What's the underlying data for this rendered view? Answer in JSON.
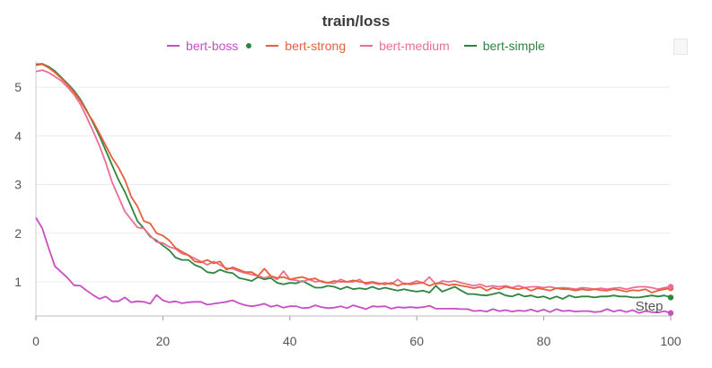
{
  "chart_data": {
    "type": "line",
    "title": "train/loss",
    "xlabel": "Step",
    "ylabel": "",
    "xlim": [
      0,
      100
    ],
    "ylim": [
      0.3,
      5.5
    ],
    "xticks": [
      0,
      20,
      40,
      60,
      80,
      100
    ],
    "yticks": [
      1,
      2,
      3,
      4,
      5
    ],
    "grid": true,
    "legend_position": "top-center",
    "series": [
      {
        "name": "bert-boss",
        "color": "#c64fc4",
        "highlighted": true,
        "x": [
          0,
          1,
          2,
          3,
          4,
          5,
          6,
          7,
          8,
          9,
          10,
          11,
          12,
          13,
          14,
          15,
          16,
          17,
          18,
          19,
          20,
          21,
          22,
          23,
          24,
          25,
          26,
          27,
          28,
          29,
          30,
          31,
          32,
          33,
          34,
          35,
          36,
          37,
          38,
          39,
          40,
          41,
          42,
          43,
          44,
          45,
          46,
          47,
          48,
          49,
          50,
          51,
          52,
          53,
          54,
          55,
          56,
          57,
          58,
          59,
          60,
          61,
          62,
          63,
          64,
          65,
          66,
          67,
          68,
          69,
          70,
          71,
          72,
          73,
          74,
          75,
          76,
          77,
          78,
          79,
          80,
          81,
          82,
          83,
          84,
          85,
          86,
          87,
          88,
          89,
          90,
          91,
          92,
          93,
          94,
          95,
          96,
          97,
          98,
          99,
          100
        ],
        "y": [
          2.32,
          2.1,
          1.7,
          1.32,
          1.2,
          1.08,
          0.93,
          0.92,
          0.82,
          0.73,
          0.65,
          0.7,
          0.6,
          0.6,
          0.68,
          0.58,
          0.6,
          0.59,
          0.55,
          0.73,
          0.62,
          0.58,
          0.6,
          0.56,
          0.58,
          0.59,
          0.59,
          0.53,
          0.55,
          0.57,
          0.59,
          0.62,
          0.56,
          0.52,
          0.5,
          0.52,
          0.55,
          0.49,
          0.52,
          0.47,
          0.5,
          0.5,
          0.46,
          0.47,
          0.52,
          0.48,
          0.46,
          0.47,
          0.5,
          0.46,
          0.52,
          0.48,
          0.44,
          0.5,
          0.49,
          0.5,
          0.45,
          0.48,
          0.47,
          0.48,
          0.47,
          0.48,
          0.51,
          0.45,
          0.45,
          0.45,
          0.45,
          0.44,
          0.44,
          0.4,
          0.41,
          0.39,
          0.44,
          0.4,
          0.42,
          0.39,
          0.41,
          0.4,
          0.43,
          0.39,
          0.43,
          0.38,
          0.44,
          0.4,
          0.41,
          0.39,
          0.4,
          0.4,
          0.38,
          0.39,
          0.44,
          0.39,
          0.42,
          0.38,
          0.42,
          0.36,
          0.4,
          0.38,
          0.37,
          0.4,
          0.36
        ]
      },
      {
        "name": "bert-strong",
        "color": "#e4613b",
        "x": [
          0,
          1,
          2,
          3,
          4,
          5,
          6,
          7,
          8,
          9,
          10,
          11,
          12,
          13,
          14,
          15,
          16,
          17,
          18,
          19,
          20,
          21,
          22,
          23,
          24,
          25,
          26,
          27,
          28,
          29,
          30,
          31,
          32,
          33,
          34,
          35,
          36,
          37,
          38,
          39,
          40,
          41,
          42,
          43,
          44,
          45,
          46,
          47,
          48,
          49,
          50,
          51,
          52,
          53,
          54,
          55,
          56,
          57,
          58,
          59,
          60,
          61,
          62,
          63,
          64,
          65,
          66,
          67,
          68,
          69,
          70,
          71,
          72,
          73,
          74,
          75,
          76,
          77,
          78,
          79,
          80,
          81,
          82,
          83,
          84,
          85,
          86,
          87,
          88,
          89,
          90,
          91,
          92,
          93,
          94,
          95,
          96,
          97,
          98,
          99,
          100
        ],
        "y": [
          5.45,
          5.47,
          5.4,
          5.3,
          5.18,
          5.05,
          4.9,
          4.72,
          4.5,
          4.3,
          4.05,
          3.8,
          3.55,
          3.35,
          3.1,
          2.75,
          2.55,
          2.25,
          2.2,
          2.0,
          1.95,
          1.85,
          1.7,
          1.62,
          1.55,
          1.42,
          1.4,
          1.45,
          1.38,
          1.42,
          1.25,
          1.3,
          1.25,
          1.2,
          1.2,
          1.12,
          1.27,
          1.12,
          1.08,
          1.1,
          1.05,
          1.08,
          1.1,
          1.05,
          1.07,
          1.0,
          0.98,
          1.02,
          1.0,
          1.0,
          1.03,
          1.0,
          0.98,
          1.0,
          0.97,
          0.95,
          0.98,
          0.92,
          0.97,
          0.95,
          0.97,
          0.98,
          0.92,
          0.97,
          0.97,
          0.93,
          0.95,
          0.92,
          0.9,
          0.87,
          0.9,
          0.82,
          0.88,
          0.85,
          0.9,
          0.87,
          0.85,
          0.88,
          0.82,
          0.87,
          0.85,
          0.82,
          0.87,
          0.85,
          0.85,
          0.82,
          0.85,
          0.83,
          0.85,
          0.83,
          0.82,
          0.85,
          0.83,
          0.8,
          0.83,
          0.82,
          0.85,
          0.78,
          0.82,
          0.85,
          0.87
        ]
      },
      {
        "name": "bert-medium",
        "color": "#ec6f93",
        "x": [
          0,
          1,
          2,
          3,
          4,
          5,
          6,
          7,
          8,
          9,
          10,
          11,
          12,
          13,
          14,
          15,
          16,
          17,
          18,
          19,
          20,
          21,
          22,
          23,
          24,
          25,
          26,
          27,
          28,
          29,
          30,
          31,
          32,
          33,
          34,
          35,
          36,
          37,
          38,
          39,
          40,
          41,
          42,
          43,
          44,
          45,
          46,
          47,
          48,
          49,
          50,
          51,
          52,
          53,
          54,
          55,
          56,
          57,
          58,
          59,
          60,
          61,
          62,
          63,
          64,
          65,
          66,
          67,
          68,
          69,
          70,
          71,
          72,
          73,
          74,
          75,
          76,
          77,
          78,
          79,
          80,
          81,
          82,
          83,
          84,
          85,
          86,
          87,
          88,
          89,
          90,
          91,
          92,
          93,
          94,
          95,
          96,
          97,
          98,
          99,
          100
        ],
        "y": [
          5.32,
          5.35,
          5.3,
          5.22,
          5.13,
          5.0,
          4.85,
          4.65,
          4.38,
          4.1,
          3.8,
          3.45,
          3.05,
          2.75,
          2.45,
          2.28,
          2.12,
          2.1,
          1.95,
          1.82,
          1.8,
          1.72,
          1.68,
          1.58,
          1.55,
          1.48,
          1.42,
          1.35,
          1.42,
          1.35,
          1.28,
          1.27,
          1.22,
          1.18,
          1.15,
          1.12,
          1.08,
          1.12,
          1.05,
          1.22,
          1.05,
          1.03,
          1.0,
          1.05,
          1.0,
          1.02,
          0.98,
          0.97,
          1.05,
          1.0,
          1.0,
          1.05,
          0.95,
          0.98,
          0.95,
          0.98,
          0.95,
          1.05,
          0.95,
          0.97,
          1.02,
          0.98,
          1.1,
          0.95,
          1.02,
          1.0,
          1.02,
          0.98,
          0.95,
          0.92,
          0.95,
          0.9,
          0.92,
          0.9,
          0.92,
          0.88,
          0.92,
          0.88,
          0.9,
          0.9,
          0.88,
          0.9,
          0.87,
          0.88,
          0.87,
          0.85,
          0.88,
          0.87,
          0.85,
          0.87,
          0.85,
          0.87,
          0.88,
          0.85,
          0.88,
          0.9,
          0.9,
          0.88,
          0.85,
          0.88,
          0.9
        ]
      },
      {
        "name": "bert-simple",
        "color": "#2e8540",
        "x": [
          0,
          1,
          2,
          3,
          4,
          5,
          6,
          7,
          8,
          9,
          10,
          11,
          12,
          13,
          14,
          15,
          16,
          17,
          18,
          19,
          20,
          21,
          22,
          23,
          24,
          25,
          26,
          27,
          28,
          29,
          30,
          31,
          32,
          33,
          34,
          35,
          36,
          37,
          38,
          39,
          40,
          41,
          42,
          43,
          44,
          45,
          46,
          47,
          48,
          49,
          50,
          51,
          52,
          53,
          54,
          55,
          56,
          57,
          58,
          59,
          60,
          61,
          62,
          63,
          64,
          65,
          66,
          67,
          68,
          69,
          70,
          71,
          72,
          73,
          74,
          75,
          76,
          77,
          78,
          79,
          80,
          81,
          82,
          83,
          84,
          85,
          86,
          87,
          88,
          89,
          90,
          91,
          92,
          93,
          94,
          95,
          96,
          97,
          98,
          99,
          100
        ],
        "y": [
          5.47,
          5.48,
          5.42,
          5.33,
          5.2,
          5.07,
          4.93,
          4.75,
          4.52,
          4.27,
          4.0,
          3.7,
          3.4,
          3.1,
          2.85,
          2.55,
          2.25,
          2.1,
          1.93,
          1.85,
          1.75,
          1.65,
          1.5,
          1.45,
          1.45,
          1.35,
          1.3,
          1.2,
          1.18,
          1.25,
          1.2,
          1.18,
          1.08,
          1.05,
          1.02,
          1.1,
          1.05,
          1.08,
          0.98,
          0.95,
          0.98,
          0.97,
          1.02,
          0.95,
          0.88,
          0.88,
          0.92,
          0.9,
          0.85,
          0.9,
          0.85,
          0.87,
          0.85,
          0.9,
          0.85,
          0.88,
          0.85,
          0.82,
          0.85,
          0.82,
          0.8,
          0.82,
          0.78,
          0.92,
          0.8,
          0.85,
          0.9,
          0.82,
          0.75,
          0.75,
          0.73,
          0.72,
          0.75,
          0.78,
          0.72,
          0.7,
          0.75,
          0.7,
          0.72,
          0.68,
          0.7,
          0.65,
          0.7,
          0.65,
          0.72,
          0.68,
          0.7,
          0.7,
          0.68,
          0.7,
          0.7,
          0.72,
          0.7,
          0.7,
          0.68,
          0.68,
          0.7,
          0.72,
          0.7,
          0.72,
          0.68
        ]
      }
    ]
  }
}
